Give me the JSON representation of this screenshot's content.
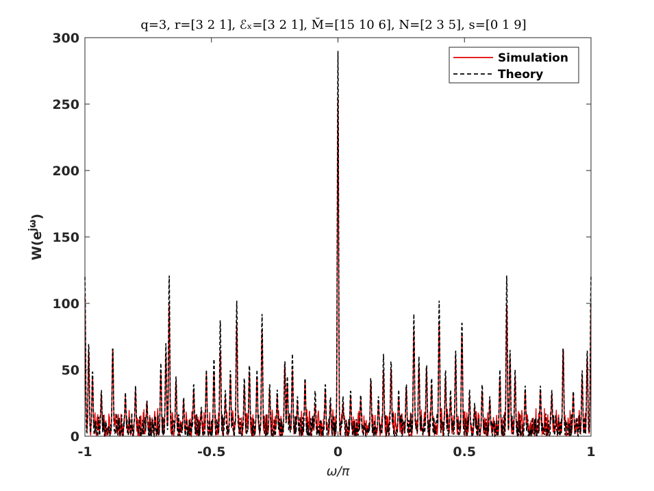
{
  "chart_data": {
    "type": "line",
    "title": "q=3, r=[3 2 1], ℰₓ=[3 2 1], M̆=[15 10 6], N=[2 3 5], s=[0 1 9]",
    "xlabel": "ω/π",
    "ylabel": "W(e",
    "ylabel_sup": "jω",
    "ylabel_close": ")",
    "xlim": [
      -1,
      1
    ],
    "ylim": [
      0,
      300
    ],
    "xticks": [
      -1,
      -0.5,
      0,
      0.5,
      1
    ],
    "xtick_labels": [
      "-1",
      "-0.5",
      "0",
      "0.5",
      "1"
    ],
    "yticks": [
      0,
      50,
      100,
      150,
      200,
      250,
      300
    ],
    "ytick_labels": [
      "0",
      "50",
      "100",
      "150",
      "200",
      "250",
      "300"
    ],
    "legend_position": "top-right",
    "grid": false,
    "series": [
      {
        "name": "Simulation",
        "color": "#e00000",
        "style": "solid",
        "peaks": [
          [
            -1,
            105
          ],
          [
            -0.985,
            65
          ],
          [
            -0.97,
            45
          ],
          [
            -0.935,
            32
          ],
          [
            -0.89,
            68
          ],
          [
            -0.84,
            30
          ],
          [
            -0.8,
            35
          ],
          [
            -0.755,
            27
          ],
          [
            -0.7,
            48
          ],
          [
            -0.68,
            62
          ],
          [
            -0.667,
            100
          ],
          [
            -0.64,
            42
          ],
          [
            -0.61,
            28
          ],
          [
            -0.57,
            35
          ],
          [
            -0.54,
            20
          ],
          [
            -0.52,
            48
          ],
          [
            -0.49,
            48
          ],
          [
            -0.465,
            65
          ],
          [
            -0.445,
            30
          ],
          [
            -0.425,
            45
          ],
          [
            -0.4,
            85
          ],
          [
            -0.37,
            40
          ],
          [
            -0.35,
            50
          ],
          [
            -0.32,
            45
          ],
          [
            -0.3,
            80
          ],
          [
            -0.27,
            35
          ],
          [
            -0.24,
            30
          ],
          [
            -0.21,
            55
          ],
          [
            -0.2,
            40
          ],
          [
            -0.18,
            50
          ],
          [
            -0.16,
            25
          ],
          [
            -0.13,
            42
          ],
          [
            -0.09,
            25
          ],
          [
            -0.05,
            35
          ],
          [
            -0.03,
            25
          ],
          [
            0,
            255
          ],
          [
            0.02,
            25
          ],
          [
            0.05,
            30
          ],
          [
            0.09,
            28
          ],
          [
            0.13,
            42
          ],
          [
            0.16,
            25
          ],
          [
            0.18,
            50
          ],
          [
            0.21,
            52
          ],
          [
            0.24,
            30
          ],
          [
            0.27,
            38
          ],
          [
            0.3,
            80
          ],
          [
            0.32,
            55
          ],
          [
            0.35,
            52
          ],
          [
            0.37,
            40
          ],
          [
            0.4,
            85
          ],
          [
            0.425,
            45
          ],
          [
            0.445,
            30
          ],
          [
            0.465,
            60
          ],
          [
            0.49,
            80
          ],
          [
            0.52,
            30
          ],
          [
            0.54,
            22
          ],
          [
            0.57,
            35
          ],
          [
            0.6,
            28
          ],
          [
            0.64,
            45
          ],
          [
            0.667,
            100
          ],
          [
            0.68,
            60
          ],
          [
            0.7,
            45
          ],
          [
            0.74,
            35
          ],
          [
            0.8,
            35
          ],
          [
            0.845,
            32
          ],
          [
            0.89,
            68
          ],
          [
            0.93,
            32
          ],
          [
            0.965,
            45
          ],
          [
            0.985,
            60
          ],
          [
            1,
            100
          ]
        ]
      },
      {
        "name": "Theory",
        "color": "#000000",
        "style": "dashed",
        "peaks": [
          [
            -1,
            120
          ],
          [
            -0.985,
            70
          ],
          [
            -0.97,
            50
          ],
          [
            -0.935,
            35
          ],
          [
            -0.89,
            68
          ],
          [
            -0.84,
            33
          ],
          [
            -0.8,
            38
          ],
          [
            -0.755,
            27
          ],
          [
            -0.7,
            55
          ],
          [
            -0.68,
            70
          ],
          [
            -0.667,
            122
          ],
          [
            -0.64,
            45
          ],
          [
            -0.61,
            30
          ],
          [
            -0.57,
            40
          ],
          [
            -0.54,
            22
          ],
          [
            -0.52,
            50
          ],
          [
            -0.49,
            60
          ],
          [
            -0.465,
            88
          ],
          [
            -0.445,
            35
          ],
          [
            -0.425,
            50
          ],
          [
            -0.4,
            102
          ],
          [
            -0.37,
            45
          ],
          [
            -0.35,
            55
          ],
          [
            -0.32,
            50
          ],
          [
            -0.3,
            92
          ],
          [
            -0.27,
            40
          ],
          [
            -0.24,
            35
          ],
          [
            -0.21,
            58
          ],
          [
            -0.2,
            45
          ],
          [
            -0.18,
            62
          ],
          [
            -0.16,
            30
          ],
          [
            -0.13,
            45
          ],
          [
            -0.09,
            35
          ],
          [
            -0.05,
            40
          ],
          [
            -0.03,
            30
          ],
          [
            0,
            290
          ],
          [
            0.02,
            30
          ],
          [
            0.05,
            35
          ],
          [
            0.09,
            32
          ],
          [
            0.13,
            45
          ],
          [
            0.16,
            30
          ],
          [
            0.18,
            62
          ],
          [
            0.21,
            58
          ],
          [
            0.24,
            35
          ],
          [
            0.27,
            40
          ],
          [
            0.3,
            92
          ],
          [
            0.32,
            60
          ],
          [
            0.35,
            55
          ],
          [
            0.37,
            45
          ],
          [
            0.4,
            102
          ],
          [
            0.425,
            50
          ],
          [
            0.445,
            35
          ],
          [
            0.465,
            65
          ],
          [
            0.49,
            88
          ],
          [
            0.52,
            35
          ],
          [
            0.54,
            25
          ],
          [
            0.57,
            40
          ],
          [
            0.6,
            30
          ],
          [
            0.64,
            50
          ],
          [
            0.667,
            122
          ],
          [
            0.68,
            65
          ],
          [
            0.7,
            50
          ],
          [
            0.74,
            38
          ],
          [
            0.8,
            38
          ],
          [
            0.845,
            35
          ],
          [
            0.89,
            68
          ],
          [
            0.93,
            35
          ],
          [
            0.965,
            50
          ],
          [
            0.985,
            65
          ],
          [
            1,
            120
          ]
        ]
      }
    ]
  }
}
